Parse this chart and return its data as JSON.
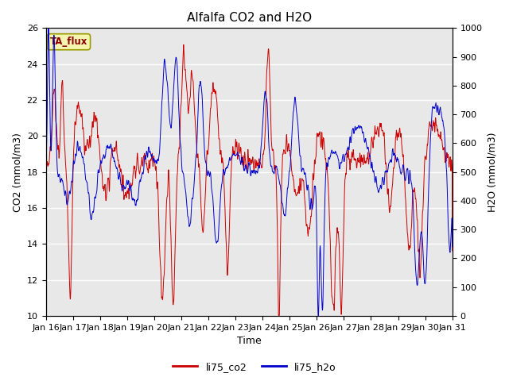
{
  "title": "Alfalfa CO2 and H2O",
  "xlabel": "Time",
  "ylabel_left": "CO2 (mmol/m3)",
  "ylabel_right": "H2O (mmol/m3)",
  "annotation": "TA_flux",
  "ylim_left": [
    10,
    26
  ],
  "ylim_right": [
    0,
    1000
  ],
  "xtick_labels": [
    "Jan 16",
    "Jan 17",
    "Jan 18",
    "Jan 19",
    "Jan 20",
    "Jan 21",
    "Jan 22",
    "Jan 23",
    "Jan 24",
    "Jan 25",
    "Jan 26",
    "Jan 27",
    "Jan 28",
    "Jan 29",
    "Jan 30",
    "Jan 31"
  ],
  "yticks_left": [
    10,
    12,
    14,
    16,
    18,
    20,
    22,
    24,
    26
  ],
  "yticks_right": [
    0,
    100,
    200,
    300,
    400,
    500,
    600,
    700,
    800,
    900,
    1000
  ],
  "co2_color": "#cc0000",
  "h2o_color": "#0000cc",
  "legend_co2": "li75_co2",
  "legend_h2o": "li75_h2o",
  "bg_color": "#e8e8e8",
  "title_fontsize": 11,
  "axis_label_fontsize": 9,
  "tick_fontsize": 8,
  "linewidth": 0.7
}
